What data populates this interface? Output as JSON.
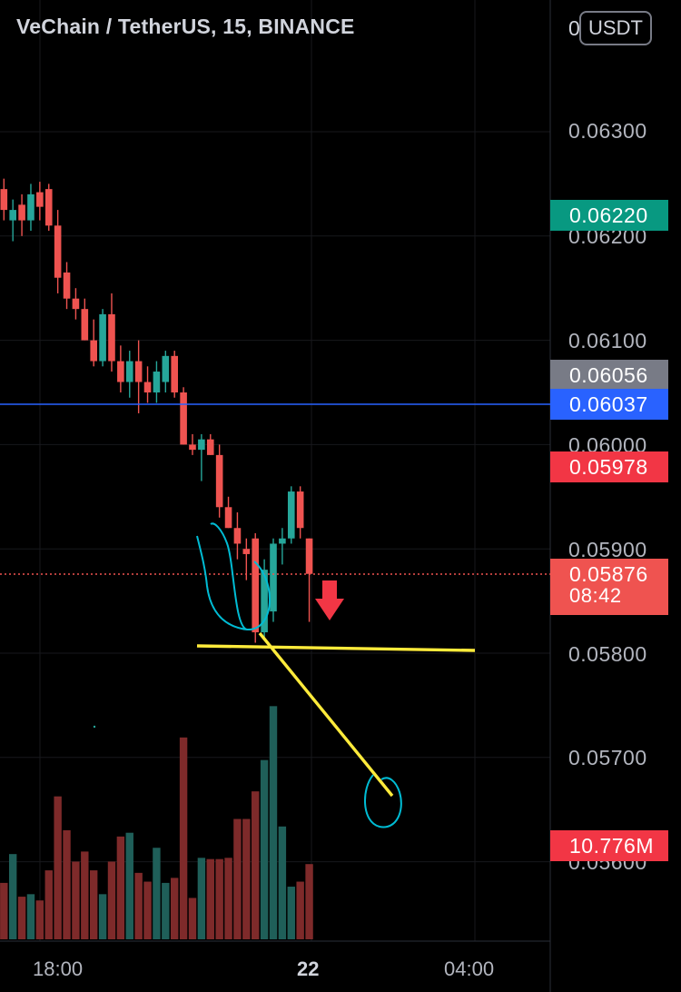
{
  "header": {
    "symbol_title": "VeChain / TetherUS, 15, BINANCE",
    "currency_button": "USDT",
    "clipped_tick_prefix": "0"
  },
  "price_axis": {
    "ticks": [
      "0.06300",
      "0.06200",
      "0.06100",
      "0.06000",
      "0.05900",
      "0.05800",
      "0.05700",
      "0.05600"
    ]
  },
  "time_axis": {
    "ticks": [
      "18:00",
      "22",
      "04:00"
    ]
  },
  "badges": {
    "high_price": "0.06220",
    "session_price": "0.06056",
    "blue_line_price": "0.06037",
    "red_price": "0.05978",
    "last_price": "0.05876",
    "countdown": "08:42",
    "volume": "10.776M"
  },
  "colors": {
    "background": "#000000",
    "up": "#26a69a",
    "down": "#ef5350",
    "volume_up": "#1f5f59",
    "volume_down": "#7e2a2a",
    "blue_line": "#2962ff",
    "annotation_yellow": "#ffeb3b",
    "annotation_cyan": "#00bcd4",
    "badge_green": "#089981",
    "badge_gray": "#787b86",
    "badge_blue": "#2962ff",
    "badge_red": "#f23645"
  },
  "chart_data": {
    "type": "candlestick",
    "symbol": "VeChain / TetherUS",
    "interval": "15",
    "exchange": "BINANCE",
    "ylim": [
      0.0554,
      0.0643
    ],
    "candles": [
      {
        "o": 0.06245,
        "h": 0.06255,
        "l": 0.06215,
        "c": 0.06225
      },
      {
        "o": 0.06215,
        "h": 0.06235,
        "l": 0.06195,
        "c": 0.06225
      },
      {
        "o": 0.0623,
        "h": 0.0624,
        "l": 0.062,
        "c": 0.06215
      },
      {
        "o": 0.06215,
        "h": 0.0625,
        "l": 0.06205,
        "c": 0.0624
      },
      {
        "o": 0.06242,
        "h": 0.06252,
        "l": 0.06215,
        "c": 0.06228
      },
      {
        "o": 0.06245,
        "h": 0.0625,
        "l": 0.06205,
        "c": 0.0621
      },
      {
        "o": 0.0621,
        "h": 0.06225,
        "l": 0.06145,
        "c": 0.0616
      },
      {
        "o": 0.06165,
        "h": 0.06175,
        "l": 0.0613,
        "c": 0.0614
      },
      {
        "o": 0.0614,
        "h": 0.0615,
        "l": 0.0612,
        "c": 0.0613
      },
      {
        "o": 0.0613,
        "h": 0.0614,
        "l": 0.061,
        "c": 0.061
      },
      {
        "o": 0.061,
        "h": 0.0612,
        "l": 0.06075,
        "c": 0.0608
      },
      {
        "o": 0.0608,
        "h": 0.0613,
        "l": 0.06075,
        "c": 0.06125
      },
      {
        "o": 0.06125,
        "h": 0.06145,
        "l": 0.0607,
        "c": 0.0608
      },
      {
        "o": 0.0608,
        "h": 0.06095,
        "l": 0.0605,
        "c": 0.0606
      },
      {
        "o": 0.0606,
        "h": 0.0609,
        "l": 0.06045,
        "c": 0.0608
      },
      {
        "o": 0.0608,
        "h": 0.061,
        "l": 0.0603,
        "c": 0.0606
      },
      {
        "o": 0.0606,
        "h": 0.06075,
        "l": 0.0604,
        "c": 0.0605
      },
      {
        "o": 0.0605,
        "h": 0.0608,
        "l": 0.0604,
        "c": 0.0607
      },
      {
        "o": 0.0606,
        "h": 0.0609,
        "l": 0.0605,
        "c": 0.06085
      },
      {
        "o": 0.06085,
        "h": 0.0609,
        "l": 0.06045,
        "c": 0.0605
      },
      {
        "o": 0.0605,
        "h": 0.06055,
        "l": 0.06,
        "c": 0.06
      },
      {
        "o": 0.06,
        "h": 0.0601,
        "l": 0.0599,
        "c": 0.05995
      },
      {
        "o": 0.05995,
        "h": 0.0601,
        "l": 0.05965,
        "c": 0.06005
      },
      {
        "o": 0.06005,
        "h": 0.0601,
        "l": 0.0599,
        "c": 0.0599
      },
      {
        "o": 0.0599,
        "h": 0.06,
        "l": 0.0593,
        "c": 0.0594
      },
      {
        "o": 0.0594,
        "h": 0.0595,
        "l": 0.0592,
        "c": 0.0592
      },
      {
        "o": 0.0592,
        "h": 0.05935,
        "l": 0.0589,
        "c": 0.05905
      },
      {
        "o": 0.059,
        "h": 0.0591,
        "l": 0.0587,
        "c": 0.05895
      },
      {
        "o": 0.0591,
        "h": 0.05915,
        "l": 0.0581,
        "c": 0.0582
      },
      {
        "o": 0.0582,
        "h": 0.0589,
        "l": 0.05815,
        "c": 0.0588
      },
      {
        "o": 0.0584,
        "h": 0.0591,
        "l": 0.0583,
        "c": 0.05905
      },
      {
        "o": 0.05905,
        "h": 0.0592,
        "l": 0.05885,
        "c": 0.0591
      },
      {
        "o": 0.0591,
        "h": 0.0596,
        "l": 0.05905,
        "c": 0.05955
      },
      {
        "o": 0.05955,
        "h": 0.0596,
        "l": 0.0591,
        "c": 0.0592
      },
      {
        "o": 0.0591,
        "h": 0.0591,
        "l": 0.0583,
        "c": 0.05876
      }
    ],
    "volume_relative": [
      0.45,
      0.68,
      0.34,
      0.36,
      0.31,
      0.55,
      1.14,
      0.87,
      0.62,
      0.7,
      0.55,
      0.36,
      0.62,
      0.82,
      0.85,
      0.53,
      0.46,
      0.73,
      0.45,
      0.49,
      1.61,
      0.33,
      0.65,
      0.64,
      0.64,
      0.65,
      0.96,
      0.96,
      1.18,
      1.43,
      1.86,
      0.9,
      0.42,
      0.46,
      0.6
    ]
  }
}
